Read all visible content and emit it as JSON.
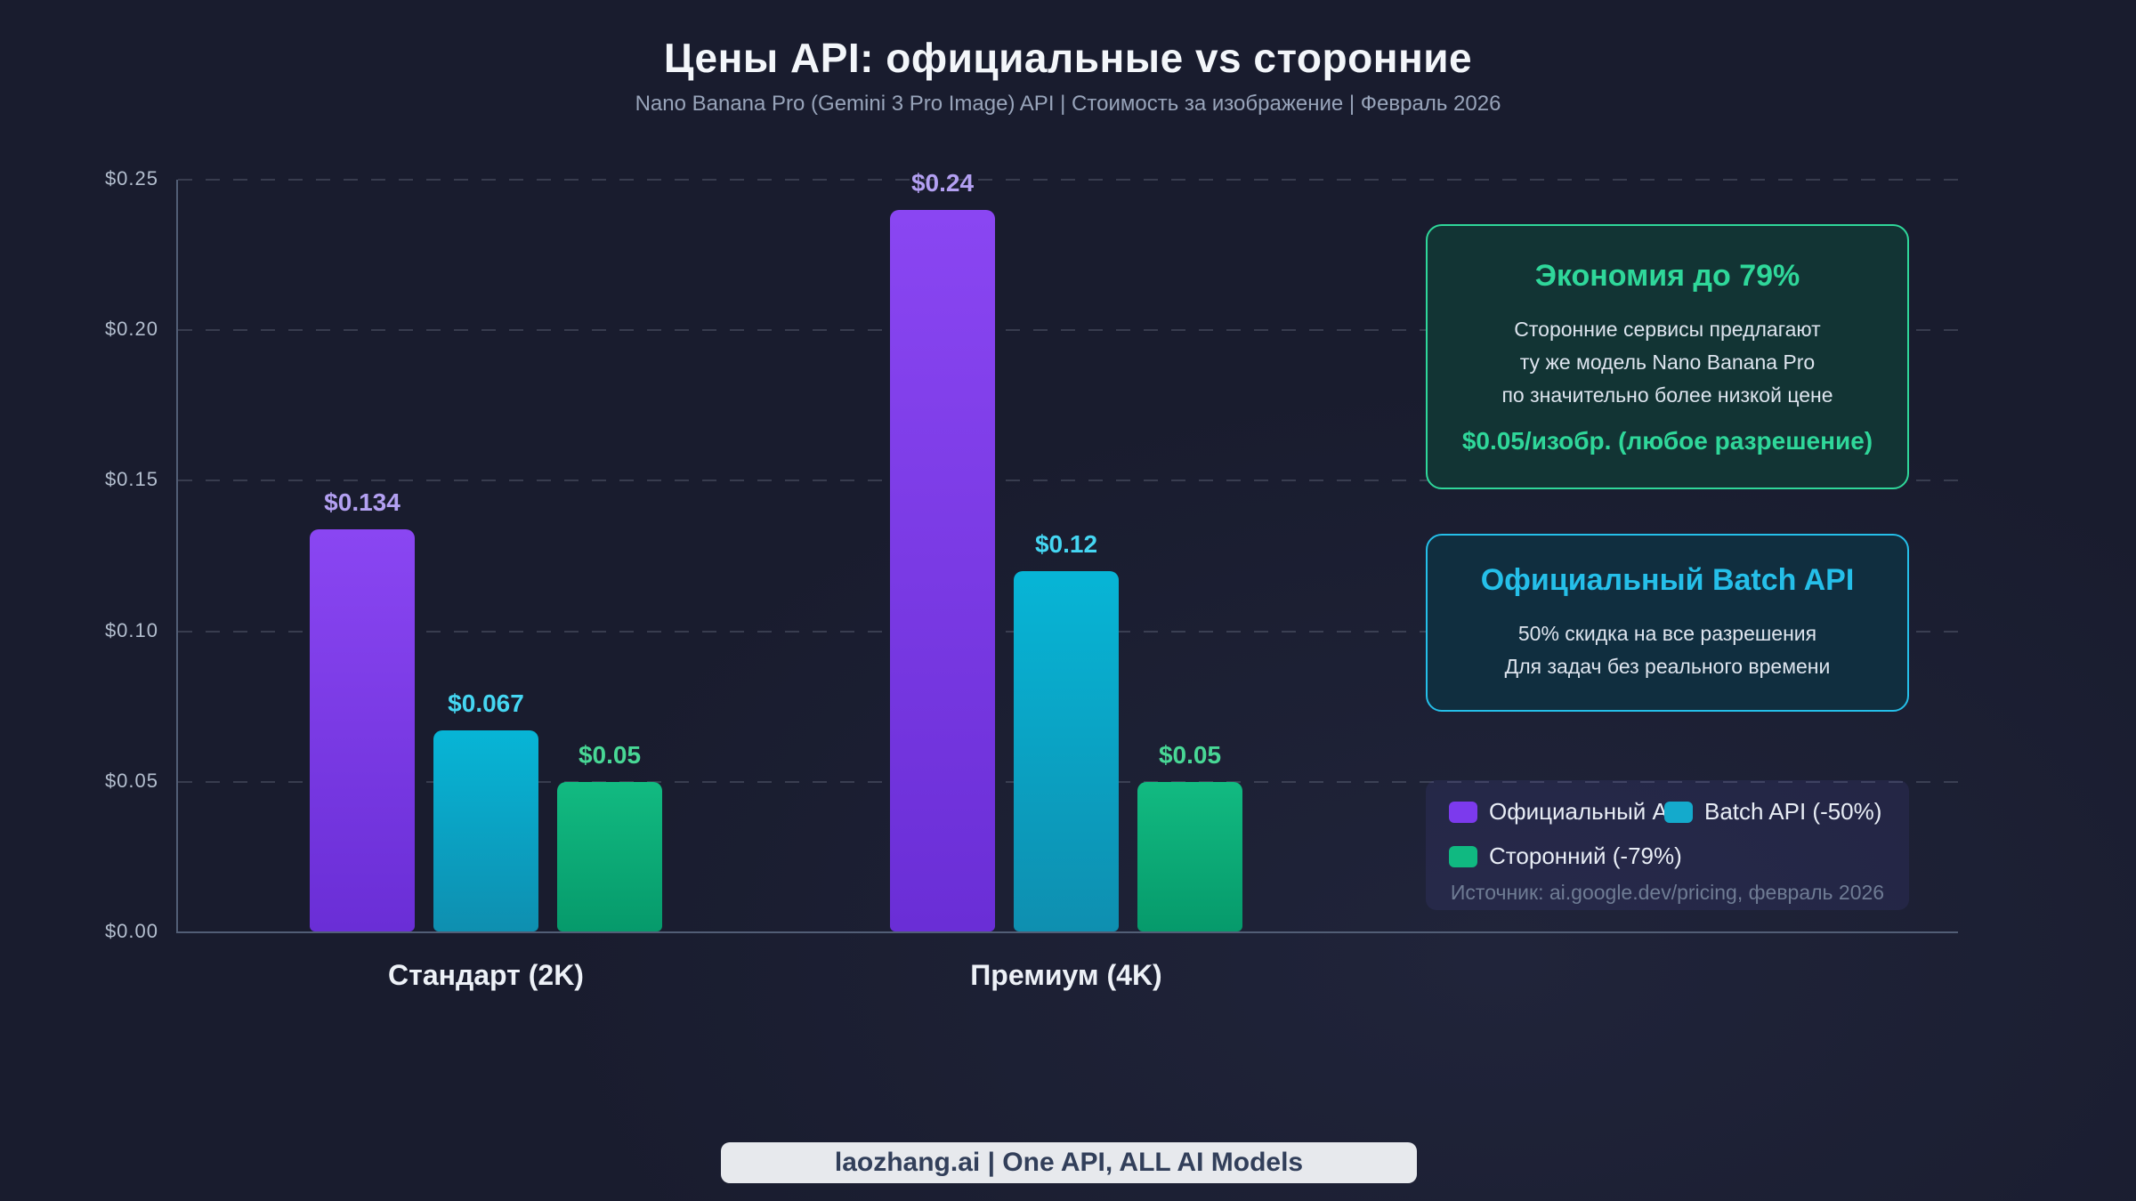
{
  "header": {
    "title": "Цены API: официальные vs сторонние",
    "subtitle": "Nano Banana Pro (Gemini 3 Pro Image) API | Стоимость за изображение | Февраль 2026"
  },
  "chart_data": {
    "type": "bar",
    "categories": [
      "Стандарт (2K)",
      "Премиум (4K)"
    ],
    "series": [
      {
        "name": "Официальный API",
        "values": [
          0.134,
          0.24
        ],
        "value_labels": [
          "$0.134",
          "$0.24"
        ],
        "color_top": "#8a46f2",
        "color_bottom": "#6a2ed6",
        "label_color": "#b3a0f2",
        "legend_color": "#7c3aed"
      },
      {
        "name": "Batch API (-50%)",
        "values": [
          0.067,
          0.12
        ],
        "value_labels": [
          "$0.067",
          "$0.12"
        ],
        "color_top": "#07b5d6",
        "color_bottom": "#0e8fb0",
        "label_color": "#45d6f2",
        "legend_color": "#14aacc"
      },
      {
        "name": "Сторонний (-79%)",
        "values": [
          0.05,
          0.05
        ],
        "value_labels": [
          "$0.05",
          "$0.05"
        ],
        "color_top": "#12ba81",
        "color_bottom": "#069a6b",
        "label_color": "#48d795",
        "legend_color": "#10b981"
      }
    ],
    "ylim": [
      0,
      0.25
    ],
    "ytick_labels": [
      "$0.00",
      "$0.05",
      "$0.10",
      "$0.15",
      "$0.20",
      "$0.25"
    ],
    "grid": "horizontal dashed",
    "legend_position": "bottom-right panel"
  },
  "callouts": {
    "savings": {
      "title": "Экономия до 79%",
      "lines": [
        "Сторонние сервисы предлагают",
        "ту же модель Nano Banana Pro",
        "по значительно более низкой цене"
      ],
      "highlight": "$0.05/изобр. (любое разрешение)",
      "accent_color": "#2fd79a"
    },
    "batch": {
      "title": "Официальный Batch API",
      "lines": [
        "50% скидка на все разрешения",
        "Для задач без реального времени"
      ],
      "accent_color": "#25bfe9"
    }
  },
  "legend": {
    "source": "Источник: ai.google.dev/pricing, февраль 2026"
  },
  "footer": {
    "banner": "laozhang.ai | One API, ALL AI Models"
  },
  "colors": {
    "background": "#191c2e",
    "axis": "#525e76",
    "banner_bg": "#e7e9ed",
    "banner_text": "#323f5a"
  }
}
